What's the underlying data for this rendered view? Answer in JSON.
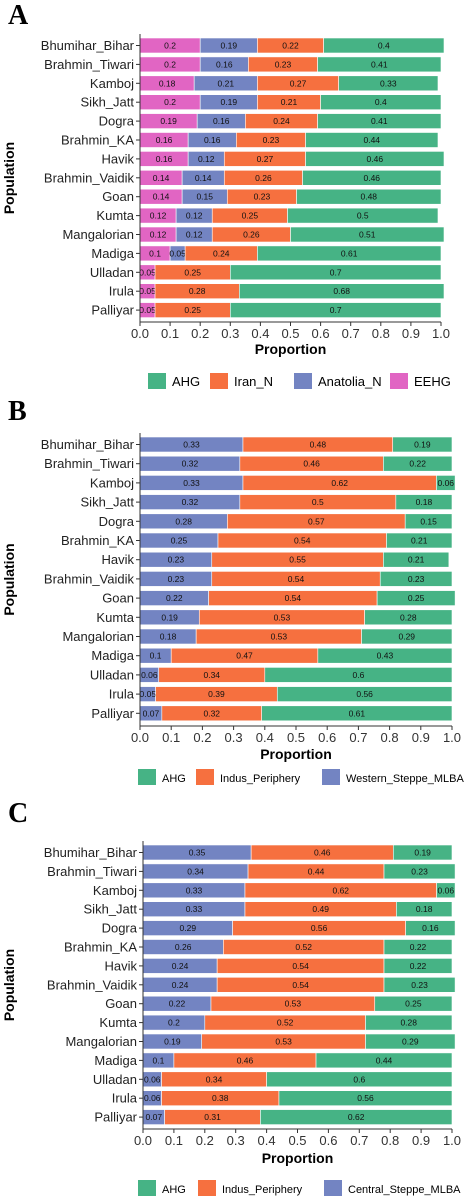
{
  "colors": {
    "AHG": "#46B385",
    "Iran_N": "#F6703F",
    "Anatolia_N": "#7384C2",
    "EEHG": "#E165C3",
    "Indus_Periphery": "#F6703F",
    "Western_Steppe_MLBA": "#7384C2",
    "Central_Steppe_MLBA": "#7384C2"
  },
  "chart_data": [
    {
      "panel": "A",
      "type": "bar",
      "orientation": "horizontal",
      "stacked": true,
      "xlabel": "Proportion",
      "ylabel": "Population",
      "xlim": [
        0,
        1
      ],
      "x_ticks": [
        "0.0",
        "0.1",
        "0.2",
        "0.3",
        "0.4",
        "0.5",
        "0.6",
        "0.7",
        "0.8",
        "0.9",
        "1.0"
      ],
      "legend_position": "bottom",
      "legend_order": [
        "AHG",
        "Iran_N",
        "Anatolia_N",
        "EEHG"
      ],
      "stack_order": [
        "EEHG",
        "Anatolia_N",
        "Iran_N",
        "AHG"
      ],
      "categories": [
        "Bhumihar_Bihar",
        "Brahmin_Tiwari",
        "Kamboj",
        "Sikh_Jatt",
        "Dogra",
        "Brahmin_KA",
        "Havik",
        "Brahmin_Vaidik",
        "Goan",
        "Kumta",
        "Mangalorian",
        "Madiga",
        "Ulladan",
        "Irula",
        "Palliyar"
      ],
      "series": [
        {
          "name": "EEHG",
          "values": [
            0.2,
            0.2,
            0.18,
            0.2,
            0.19,
            0.16,
            0.16,
            0.14,
            0.14,
            0.12,
            0.12,
            0.1,
            0.05,
            0.05,
            0.05
          ]
        },
        {
          "name": "Anatolia_N",
          "values": [
            0.19,
            0.16,
            0.21,
            0.19,
            0.16,
            0.16,
            0.12,
            0.14,
            0.15,
            0.12,
            0.12,
            0.05,
            0,
            0,
            0
          ]
        },
        {
          "name": "Iran_N",
          "values": [
            0.22,
            0.23,
            0.27,
            0.21,
            0.24,
            0.23,
            0.27,
            0.26,
            0.23,
            0.25,
            0.26,
            0.24,
            0.25,
            0.28,
            0.25
          ]
        },
        {
          "name": "AHG",
          "values": [
            0.4,
            0.41,
            0.33,
            0.4,
            0.41,
            0.44,
            0.46,
            0.46,
            0.48,
            0.5,
            0.51,
            0.61,
            0.7,
            0.68,
            0.7
          ]
        }
      ]
    },
    {
      "panel": "B",
      "type": "bar",
      "orientation": "horizontal",
      "stacked": true,
      "xlabel": "Proportion",
      "ylabel": "Population",
      "xlim": [
        0,
        1
      ],
      "x_ticks": [
        "0.0",
        "0.1",
        "0.2",
        "0.3",
        "0.4",
        "0.5",
        "0.6",
        "0.7",
        "0.8",
        "0.9",
        "1.0"
      ],
      "legend_position": "bottom",
      "legend_order": [
        "AHG",
        "Indus_Periphery",
        "Western_Steppe_MLBA"
      ],
      "stack_order": [
        "Western_Steppe_MLBA",
        "Indus_Periphery",
        "AHG"
      ],
      "categories": [
        "Bhumihar_Bihar",
        "Brahmin_Tiwari",
        "Kamboj",
        "Sikh_Jatt",
        "Dogra",
        "Brahmin_KA",
        "Havik",
        "Brahmin_Vaidik",
        "Goan",
        "Kumta",
        "Mangalorian",
        "Madiga",
        "Ulladan",
        "Irula",
        "Palliyar"
      ],
      "series": [
        {
          "name": "Western_Steppe_MLBA",
          "values": [
            0.33,
            0.32,
            0.33,
            0.32,
            0.28,
            0.25,
            0.23,
            0.23,
            0.22,
            0.19,
            0.18,
            0.1,
            0.06,
            0.05,
            0.07
          ]
        },
        {
          "name": "Indus_Periphery",
          "values": [
            0.48,
            0.46,
            0.62,
            0.5,
            0.57,
            0.54,
            0.55,
            0.54,
            0.54,
            0.53,
            0.53,
            0.47,
            0.34,
            0.39,
            0.32
          ]
        },
        {
          "name": "AHG",
          "values": [
            0.19,
            0.22,
            0.06,
            0.18,
            0.15,
            0.21,
            0.21,
            0.23,
            0.25,
            0.28,
            0.29,
            0.43,
            0.6,
            0.56,
            0.61
          ]
        }
      ]
    },
    {
      "panel": "C",
      "type": "bar",
      "orientation": "horizontal",
      "stacked": true,
      "xlabel": "Proportion",
      "ylabel": "Population",
      "xlim": [
        0,
        1
      ],
      "x_ticks": [
        "0.0",
        "0.1",
        "0.2",
        "0.3",
        "0.4",
        "0.5",
        "0.6",
        "0.7",
        "0.8",
        "0.9",
        "1.0"
      ],
      "legend_position": "bottom",
      "legend_order": [
        "AHG",
        "Indus_Periphery",
        "Central_Steppe_MLBA"
      ],
      "stack_order": [
        "Central_Steppe_MLBA",
        "Indus_Periphery",
        "AHG"
      ],
      "categories": [
        "Bhumihar_Bihar",
        "Brahmin_Tiwari",
        "Kamboj",
        "Sikh_Jatt",
        "Dogra",
        "Brahmin_KA",
        "Havik",
        "Brahmin_Vaidik",
        "Goan",
        "Kumta",
        "Mangalorian",
        "Madiga",
        "Ulladan",
        "Irula",
        "Palliyar"
      ],
      "series": [
        {
          "name": "Central_Steppe_MLBA",
          "values": [
            0.35,
            0.34,
            0.33,
            0.33,
            0.29,
            0.26,
            0.24,
            0.24,
            0.22,
            0.2,
            0.19,
            0.1,
            0.06,
            0.06,
            0.07
          ]
        },
        {
          "name": "Indus_Periphery",
          "values": [
            0.46,
            0.44,
            0.62,
            0.49,
            0.56,
            0.52,
            0.54,
            0.54,
            0.53,
            0.52,
            0.53,
            0.46,
            0.34,
            0.38,
            0.31
          ]
        },
        {
          "name": "AHG",
          "values": [
            0.19,
            0.23,
            0.06,
            0.18,
            0.16,
            0.22,
            0.22,
            0.23,
            0.25,
            0.28,
            0.29,
            0.44,
            0.6,
            0.56,
            0.62
          ]
        }
      ]
    }
  ]
}
